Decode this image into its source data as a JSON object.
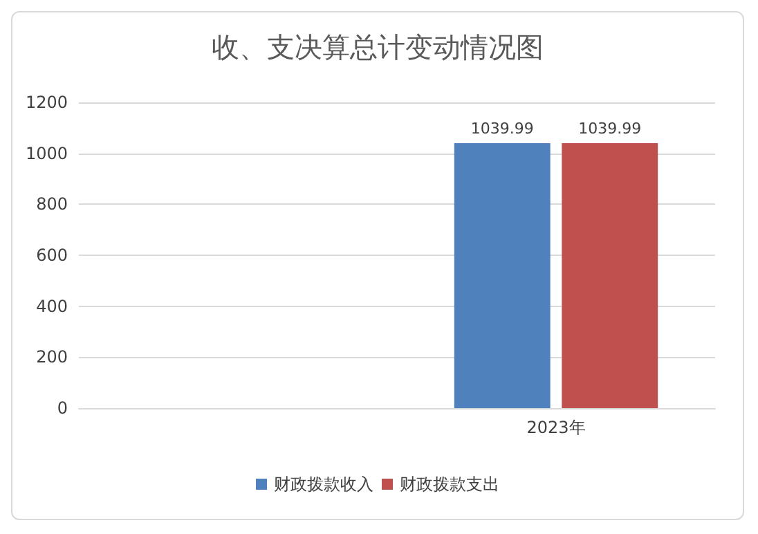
{
  "chart_data": {
    "type": "bar",
    "title": "收、支决算总计变动情况图",
    "categories": [
      null,
      "2023年"
    ],
    "series": [
      {
        "name": "财政拨款收入",
        "color": "#4f81bd",
        "values": [
          null,
          1039.99
        ]
      },
      {
        "name": "财政拨款支出",
        "color": "#c0504d",
        "values": [
          null,
          1039.99
        ]
      }
    ],
    "ylim": [
      0,
      1200
    ],
    "yticks": [
      0,
      200,
      400,
      600,
      800,
      1000,
      1200
    ],
    "grid": "y",
    "legend": "bottom",
    "data_labels": true
  }
}
